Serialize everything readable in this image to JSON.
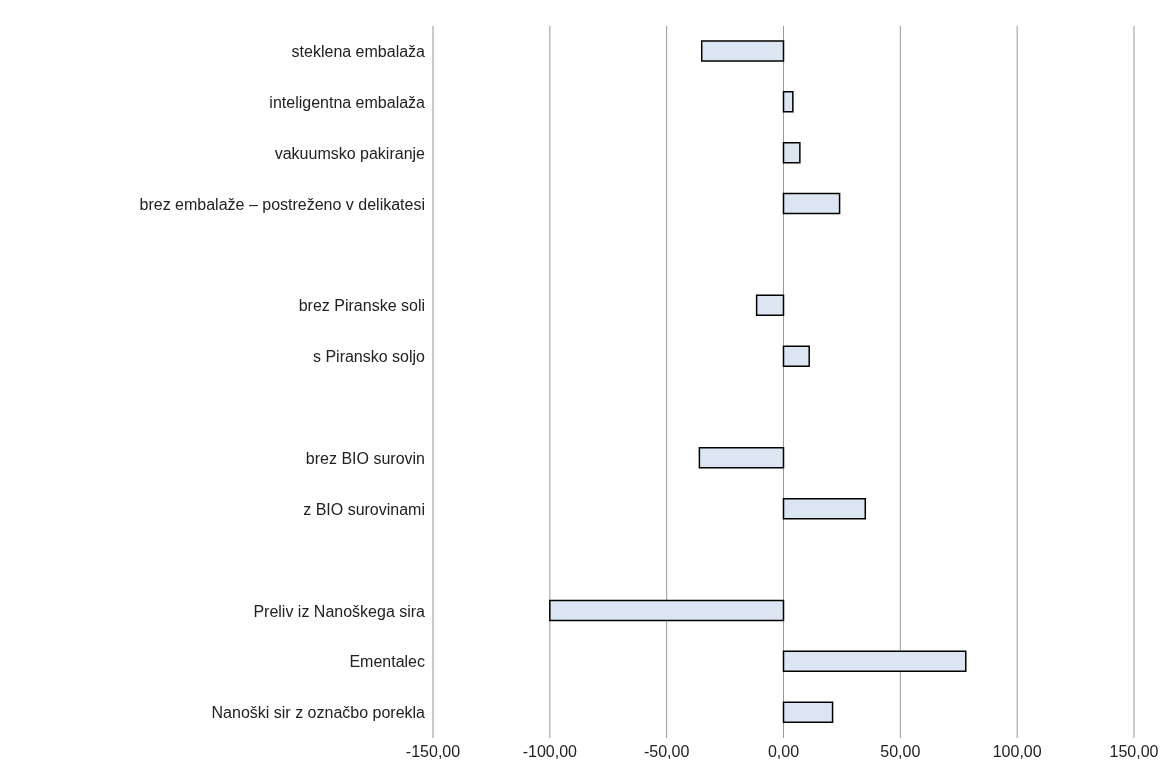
{
  "chart_data": {
    "type": "bar",
    "orientation": "horizontal",
    "categories": [
      "steklena embalaža",
      "inteligentna embalaža",
      "vakuumsko pakiranje",
      "brez embalaže – postreženo v delikatesi",
      null,
      "brez Piranske soli",
      "s Piransko soljo",
      null,
      "brez BIO surovin",
      "z BIO surovinami",
      null,
      "Preliv iz Nanoškega sira",
      "Ementalec",
      "Nanoški sir z označbo porekla"
    ],
    "values": [
      -35,
      4,
      7,
      24,
      null,
      -11.5,
      11,
      null,
      -36,
      35,
      null,
      -100,
      78,
      21
    ],
    "color": "#dce6f2",
    "xlim": [
      -150,
      150
    ],
    "xticks": [
      {
        "value": -150,
        "label": "-150,00"
      },
      {
        "value": -100,
        "label": "-100,00"
      },
      {
        "value": -50,
        "label": "-50,00"
      },
      {
        "value": 0,
        "label": "0,00"
      },
      {
        "value": 50,
        "label": "50,00"
      },
      {
        "value": 100,
        "label": "100,00"
      },
      {
        "value": 150,
        "label": "150,00"
      }
    ],
    "grid": "x",
    "legend": false
  }
}
